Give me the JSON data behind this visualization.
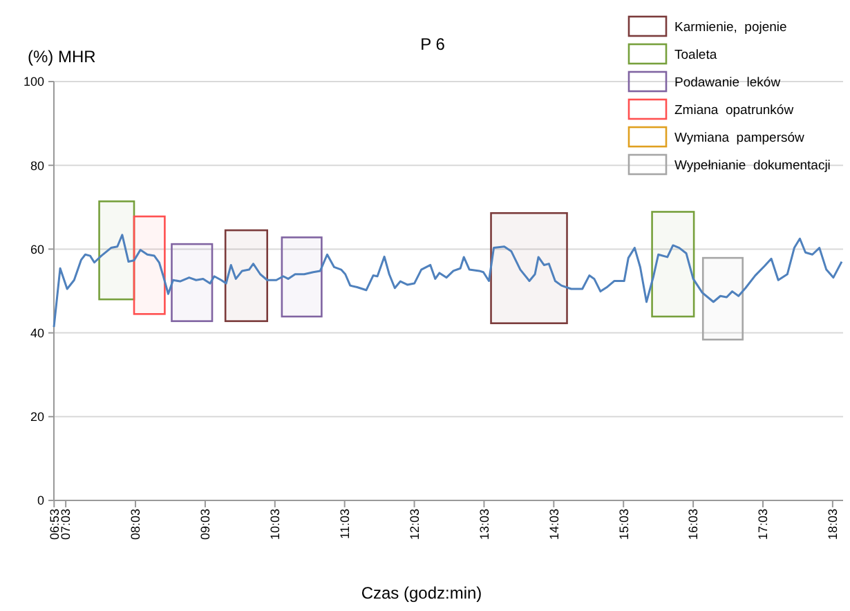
{
  "chart_data": {
    "type": "line",
    "title": "P 6",
    "xlabel": "Czas (godz:min)",
    "ylabel": "(%) MHR",
    "xlim": [
      6.88,
      18.2
    ],
    "ylim": [
      0,
      100
    ],
    "yticks": [
      0,
      20,
      40,
      60,
      80,
      100
    ],
    "xticks": [
      {
        "value": 6.883,
        "label": "06:53"
      },
      {
        "value": 7.05,
        "label": "07:03"
      },
      {
        "value": 8.05,
        "label": "08:03"
      },
      {
        "value": 9.05,
        "label": "09:03"
      },
      {
        "value": 10.05,
        "label": "10:03"
      },
      {
        "value": 11.05,
        "label": "11:03"
      },
      {
        "value": 12.05,
        "label": "12:03"
      },
      {
        "value": 13.05,
        "label": "13:03"
      },
      {
        "value": 14.05,
        "label": "14:03"
      },
      {
        "value": 15.05,
        "label": "15:03"
      },
      {
        "value": 16.05,
        "label": "16:03"
      },
      {
        "value": 17.05,
        "label": "17:03"
      },
      {
        "value": 18.05,
        "label": "18:03"
      }
    ],
    "grid": "y",
    "legend": "top right",
    "marker": "none",
    "line_style": "solid",
    "series": [
      {
        "color": "#4f81bd",
        "x": [
          6.88,
          6.97,
          7.07,
          7.17,
          7.27,
          7.33,
          7.4,
          7.46,
          7.56,
          7.7,
          7.79,
          7.86,
          7.95,
          8.03,
          8.12,
          8.22,
          8.32,
          8.39,
          8.45,
          8.52,
          8.59,
          8.69,
          8.82,
          8.92,
          9.02,
          9.12,
          9.18,
          9.28,
          9.35,
          9.42,
          9.49,
          9.58,
          9.68,
          9.74,
          9.84,
          9.94,
          10.07,
          10.17,
          10.24,
          10.34,
          10.47,
          10.6,
          10.7,
          10.8,
          10.9,
          11.0,
          11.06,
          11.13,
          11.23,
          11.36,
          11.46,
          11.52,
          11.62,
          11.69,
          11.77,
          11.85,
          11.95,
          12.05,
          12.15,
          12.28,
          12.35,
          12.41,
          12.51,
          12.61,
          12.71,
          12.76,
          12.84,
          12.98,
          13.04,
          13.12,
          13.19,
          13.34,
          13.44,
          13.57,
          13.7,
          13.78,
          13.83,
          13.91,
          13.98,
          14.07,
          14.16,
          14.3,
          14.46,
          14.56,
          14.63,
          14.72,
          14.82,
          14.92,
          15.06,
          15.12,
          15.21,
          15.29,
          15.38,
          15.48,
          15.55,
          15.68,
          15.76,
          15.85,
          15.95,
          16.05,
          16.18,
          16.34,
          16.44,
          16.53,
          16.61,
          16.7,
          16.8,
          16.94,
          17.07,
          17.17,
          17.27,
          17.4,
          17.5,
          17.58,
          17.66,
          17.76,
          17.86,
          17.96,
          18.06,
          18.18
        ],
        "values": [
          41.4,
          55.4,
          50.5,
          52.6,
          57.4,
          58.7,
          58.4,
          56.8,
          58.4,
          60.3,
          60.6,
          63.4,
          57.0,
          57.3,
          59.8,
          58.7,
          58.4,
          56.8,
          53.5,
          49.3,
          52.6,
          52.3,
          53.2,
          52.6,
          52.9,
          51.8,
          53.5,
          52.6,
          51.8,
          56.2,
          52.9,
          54.8,
          55.1,
          56.5,
          54.0,
          52.6,
          52.6,
          53.5,
          52.9,
          54.0,
          54.0,
          54.5,
          54.8,
          58.7,
          55.7,
          55.1,
          54.0,
          51.3,
          50.9,
          50.2,
          53.7,
          53.5,
          58.2,
          54.0,
          50.7,
          52.3,
          51.5,
          51.8,
          55.1,
          56.2,
          52.9,
          54.3,
          53.2,
          54.8,
          55.4,
          58.1,
          55.1,
          54.8,
          54.5,
          52.4,
          60.3,
          60.6,
          59.5,
          55.1,
          52.4,
          54.0,
          58.1,
          56.2,
          56.5,
          52.4,
          51.3,
          50.5,
          50.5,
          53.7,
          52.9,
          49.9,
          51.0,
          52.4,
          52.4,
          57.9,
          60.3,
          55.7,
          47.4,
          53.5,
          58.7,
          58.1,
          60.9,
          60.3,
          59.0,
          52.9,
          49.6,
          47.4,
          48.8,
          48.5,
          49.9,
          48.8,
          50.7,
          53.7,
          55.9,
          57.7,
          52.6,
          54.0,
          60.3,
          62.5,
          59.2,
          58.7,
          60.3,
          55.1,
          53.2,
          57.0
        ]
      },
      {
        "name": "Karmienie,  pojenie",
        "color": "#7b3b3b"
      },
      {
        "name": "Toaleta",
        "color": "#77a03c"
      },
      {
        "name": "Podawanie  leków",
        "color": "#8064a2"
      },
      {
        "name": "Zmiana  opatrunków",
        "color": "#ff5050"
      },
      {
        "name": "Wymiana  pampersów",
        "color": "#e0a020"
      },
      {
        "name": "Wypełnianie  dokumentacji",
        "color": "#a6a6a6"
      }
    ],
    "bands": [
      {
        "axis": "x",
        "from": 7.53,
        "to": 8.03,
        "color": "#77a03c"
      },
      {
        "axis": "x",
        "from": 8.03,
        "to": 8.47,
        "color": "#ff5050"
      },
      {
        "axis": "x",
        "from": 8.57,
        "to": 9.15,
        "color": "#8064a2"
      },
      {
        "axis": "x",
        "from": 9.34,
        "to": 9.94,
        "color": "#7b3b3b"
      },
      {
        "axis": "x",
        "from": 10.15,
        "to": 10.72,
        "color": "#8064a2"
      },
      {
        "axis": "x",
        "from": 13.15,
        "to": 14.24,
        "color": "#7b3b3b"
      },
      {
        "axis": "x",
        "from": 15.46,
        "to": 16.06,
        "color": "#77a03c"
      },
      {
        "axis": "x",
        "from": 16.19,
        "to": 16.76,
        "color": "#a6a6a6"
      }
    ]
  }
}
